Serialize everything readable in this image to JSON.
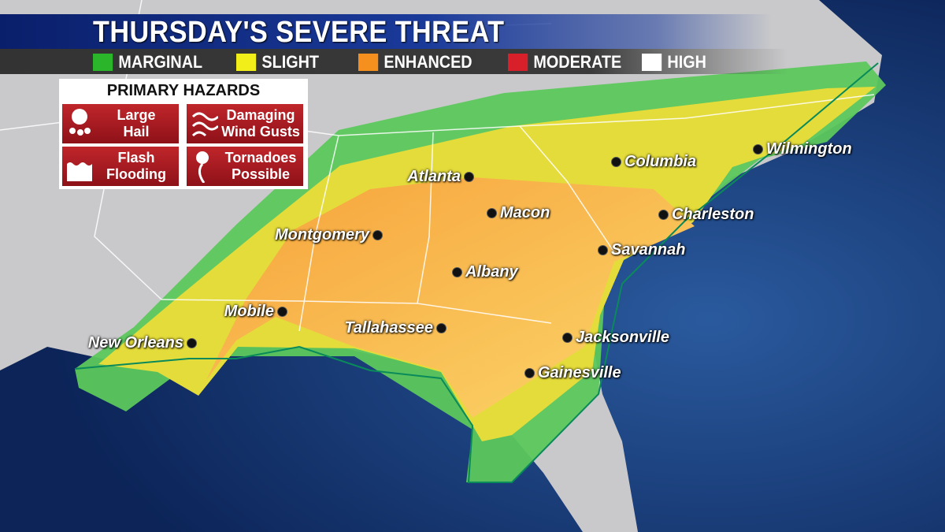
{
  "header": {
    "title": "THURSDAY'S SEVERE THREAT"
  },
  "legend": [
    {
      "label": "MARGINAL",
      "color": "#2bb52b"
    },
    {
      "label": "SLIGHT",
      "color": "#f2ee1a"
    },
    {
      "label": "ENHANCED",
      "color": "#f5901e"
    },
    {
      "label": "MODERATE",
      "color": "#d8202a"
    },
    {
      "label": "HIGH",
      "color": "#ffffff"
    }
  ],
  "hazards": {
    "title": "PRIMARY HAZARDS",
    "items": [
      {
        "line1": "Large",
        "line2": "Hail",
        "icon": "hail-icon"
      },
      {
        "line1": "Damaging",
        "line2": "Wind Gusts",
        "icon": "wind-icon"
      },
      {
        "line1": "Flash",
        "line2": "Flooding",
        "icon": "flood-icon"
      },
      {
        "line1": "Tornadoes",
        "line2": "Possible",
        "icon": "tornado-icon"
      }
    ]
  },
  "cities": [
    "Atlanta",
    "Columbia",
    "Wilmington",
    "Macon",
    "Charleston",
    "Montgomery",
    "Savannah",
    "Albany",
    "Mobile",
    "Tallahassee",
    "Jacksonville",
    "New Orleans",
    "Gainesville"
  ]
}
